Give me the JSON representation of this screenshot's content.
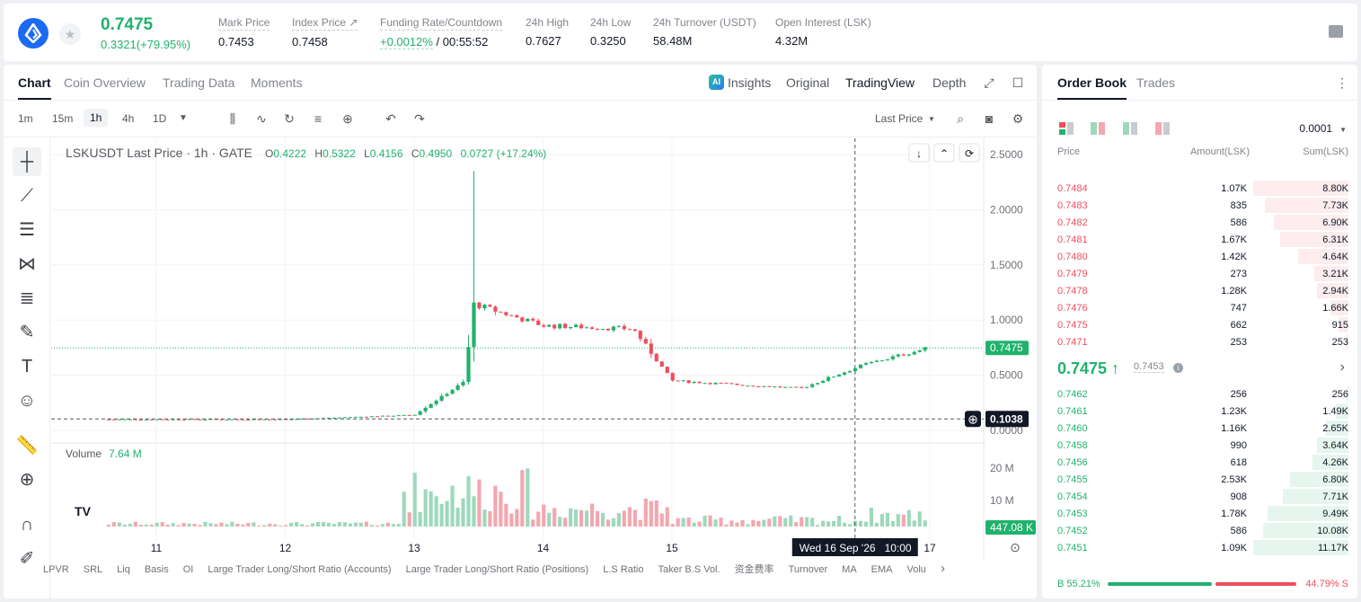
{
  "ticker": {
    "last_price": "0.7475",
    "change": "0.3321(+79.95%)",
    "stats": [
      {
        "label": "Mark Price",
        "value": "0.7453"
      },
      {
        "label": "Index Price ↗",
        "value": "0.7458"
      },
      {
        "label": "Funding Rate/Countdown",
        "value_green": "+0.0012%",
        "value": " / 00:55:52"
      },
      {
        "label": "24h High",
        "value": "0.7627"
      },
      {
        "label": "24h Low",
        "value": "0.3250"
      },
      {
        "label": "24h Turnover (USDT)",
        "value": "58.48M"
      },
      {
        "label": "Open Interest (LSK)",
        "value": "4.32M"
      }
    ]
  },
  "chart_tabs": [
    "Chart",
    "Coin Overview",
    "Trading Data",
    "Moments"
  ],
  "view_tabs": [
    "Insights",
    "Original",
    "TradingView",
    "Depth"
  ],
  "ai_badge": "AI",
  "intervals": [
    "1m",
    "15m",
    "1h",
    "4h",
    "1D"
  ],
  "price_source": "Last Price",
  "legend": {
    "symbol": "LSKUSDT Last Price · 1h · GATE",
    "o_label": "O",
    "o": "0.4222",
    "h_label": "H",
    "h": "0.5322",
    "l_label": "L",
    "l": "0.4156",
    "c_label": "C",
    "c": "0.4950",
    "chg": "0.0727 (+17.24%)"
  },
  "volume_legend": {
    "label": "Volume",
    "value": "7.64 M"
  },
  "price_axis_labels": [
    "2.5000",
    "2.0000",
    "1.5000",
    "1.0000",
    "0.5000",
    "0.0000"
  ],
  "current_price_tag": "0.7475",
  "crosshair_price_tag": "0.1038",
  "volume_axis_labels": [
    "20 M",
    "10 M"
  ],
  "volume_tag": "447.08 K",
  "time_axis_labels": [
    "11",
    "12",
    "13",
    "14",
    "15",
    "17"
  ],
  "crosshair_time": "Wed 16 Sep '26   10:00",
  "tv_logo": "TV",
  "indicators": [
    "LPVR",
    "SRL",
    "Liq",
    "Basis",
    "OI",
    "Large Trader Long/Short Ratio (Accounts)",
    "Large Trader Long/Short Ratio (Positions)",
    "L.S Ratio",
    "Taker B.S Vol.",
    "资金费率",
    "Turnover",
    "MA",
    "EMA",
    "Volu"
  ],
  "colors": {
    "up": "#20b26c",
    "down": "#ef4e5d",
    "up_vol": "#9ed8bd",
    "down_vol": "#f3a7af"
  },
  "chart_data": {
    "type": "candlestick",
    "symbol": "LSKUSDT",
    "interval": "1h",
    "ylim": [
      0,
      2.5
    ],
    "volume_unit": "M",
    "x_ticks": [
      "11",
      "12",
      "13",
      "14",
      "15",
      "17"
    ],
    "current_price": 0.7475,
    "crosshair_price": 0.1038,
    "approx_path": [
      {
        "day": "11",
        "price": 0.1
      },
      {
        "day": "12",
        "price": 0.1
      },
      {
        "day": "13",
        "price": 0.14
      },
      {
        "day": "13.4",
        "price": 0.45
      },
      {
        "day": "13.45",
        "price": 1.15,
        "high": 2.35
      },
      {
        "day": "14",
        "price": 0.95
      },
      {
        "day": "14.7",
        "price": 0.92
      },
      {
        "day": "15",
        "price": 0.45
      },
      {
        "day": "16",
        "price": 0.38
      },
      {
        "day": "16.5",
        "price": 0.6
      },
      {
        "day": "17",
        "price": 0.75
      }
    ]
  },
  "order_book": {
    "tabs": [
      "Order Book",
      "Trades"
    ],
    "precision": "0.0001",
    "headers": {
      "price": "Price",
      "amount": "Amount(LSK)",
      "sum": "Sum(LSK)"
    },
    "asks": [
      {
        "price": "0.7484",
        "amount": "1.07K",
        "sum": "8.80K",
        "depth": 1.0
      },
      {
        "price": "0.7483",
        "amount": "835",
        "sum": "7.73K",
        "depth": 0.88
      },
      {
        "price": "0.7482",
        "amount": "586",
        "sum": "6.90K",
        "depth": 0.78
      },
      {
        "price": "0.7481",
        "amount": "1.67K",
        "sum": "6.31K",
        "depth": 0.72
      },
      {
        "price": "0.7480",
        "amount": "1.42K",
        "sum": "4.64K",
        "depth": 0.53
      },
      {
        "price": "0.7479",
        "amount": "273",
        "sum": "3.21K",
        "depth": 0.36
      },
      {
        "price": "0.7478",
        "amount": "1.28K",
        "sum": "2.94K",
        "depth": 0.33
      },
      {
        "price": "0.7476",
        "amount": "747",
        "sum": "1.66K",
        "depth": 0.19
      },
      {
        "price": "0.7475",
        "amount": "662",
        "sum": "915",
        "depth": 0.1
      },
      {
        "price": "0.7471",
        "amount": "253",
        "sum": "253",
        "depth": 0.03
      }
    ],
    "mid_price": "0.7475 ↑",
    "mark_price": "0.7453",
    "bids": [
      {
        "price": "0.7462",
        "amount": "256",
        "sum": "256",
        "depth": 0.02
      },
      {
        "price": "0.7461",
        "amount": "1.23K",
        "sum": "1.49K",
        "depth": 0.13
      },
      {
        "price": "0.7460",
        "amount": "1.16K",
        "sum": "2.65K",
        "depth": 0.24
      },
      {
        "price": "0.7458",
        "amount": "990",
        "sum": "3.64K",
        "depth": 0.33
      },
      {
        "price": "0.7456",
        "amount": "618",
        "sum": "4.26K",
        "depth": 0.38
      },
      {
        "price": "0.7455",
        "amount": "2.53K",
        "sum": "6.80K",
        "depth": 0.61
      },
      {
        "price": "0.7454",
        "amount": "908",
        "sum": "7.71K",
        "depth": 0.69
      },
      {
        "price": "0.7453",
        "amount": "1.78K",
        "sum": "9.49K",
        "depth": 0.85
      },
      {
        "price": "0.7452",
        "amount": "586",
        "sum": "10.08K",
        "depth": 0.9
      },
      {
        "price": "0.7451",
        "amount": "1.09K",
        "sum": "11.17K",
        "depth": 1.0
      }
    ],
    "buy_ratio": "B 55.21%",
    "sell_ratio": "44.79% S",
    "buy_fraction": 0.5521
  }
}
